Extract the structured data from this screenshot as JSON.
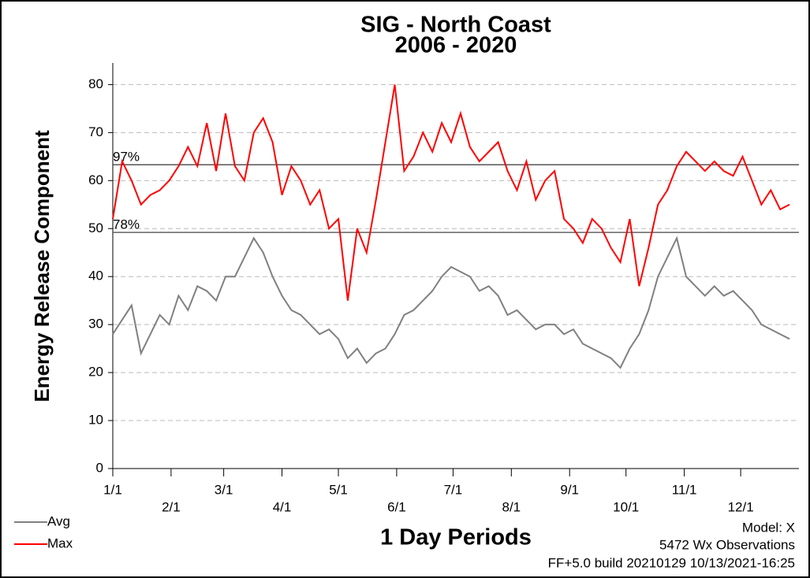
{
  "chart_data": {
    "type": "line",
    "title": "SIG - North Coast",
    "subtitle": "2006 - 2020",
    "y_label": "Energy Release Component",
    "x_label": "1 Day Periods",
    "notes": [
      "Model: X",
      "5472 Wx Observations",
      "FF+5.0 build 20210129 10/13/2021-16:25"
    ],
    "x": [
      1,
      6,
      11,
      16,
      21,
      26,
      31,
      36,
      41,
      46,
      51,
      56,
      61,
      66,
      71,
      76,
      81,
      86,
      91,
      96,
      101,
      106,
      111,
      116,
      121,
      126,
      131,
      136,
      141,
      146,
      151,
      156,
      161,
      166,
      171,
      176,
      181,
      186,
      191,
      196,
      201,
      206,
      211,
      216,
      221,
      226,
      231,
      236,
      241,
      246,
      251,
      256,
      261,
      266,
      271,
      276,
      281,
      286,
      291,
      296,
      301,
      306,
      311,
      316,
      321,
      326,
      331,
      336,
      341,
      346,
      351,
      356,
      361
    ],
    "series": [
      {
        "name": "Avg",
        "color": "#808080",
        "values": [
          28,
          31,
          34,
          24,
          28,
          32,
          30,
          36,
          33,
          38,
          37,
          35,
          40,
          40,
          44,
          48,
          45,
          40,
          36,
          33,
          32,
          30,
          28,
          29,
          27,
          23,
          25,
          22,
          24,
          25,
          28,
          32,
          33,
          35,
          37,
          40,
          42,
          41,
          40,
          37,
          38,
          36,
          32,
          33,
          31,
          29,
          30,
          30,
          28,
          29,
          26,
          25,
          24,
          23,
          21,
          25,
          28,
          33,
          40,
          44,
          48,
          40,
          38,
          36,
          38,
          36,
          37,
          35,
          33,
          30,
          29,
          28,
          27
        ]
      },
      {
        "name": "Max",
        "color": "#ff0000",
        "values": [
          52,
          64,
          60,
          55,
          57,
          58,
          60,
          63,
          67,
          63,
          72,
          62,
          74,
          63,
          60,
          70,
          73,
          68,
          57,
          63,
          60,
          55,
          58,
          50,
          52,
          35,
          50,
          45,
          56,
          68,
          80,
          62,
          65,
          70,
          66,
          72,
          68,
          74,
          67,
          64,
          66,
          68,
          62,
          58,
          64,
          56,
          60,
          62,
          52,
          50,
          47,
          52,
          50,
          46,
          43,
          52,
          38,
          46,
          55,
          58,
          63,
          66,
          64,
          62,
          64,
          62,
          61,
          65,
          60,
          55,
          58,
          54,
          55
        ]
      }
    ],
    "reference_lines": [
      {
        "value": 63.3,
        "label": "97%"
      },
      {
        "value": 49.2,
        "label": "78%"
      }
    ],
    "xlim": [
      1,
      366
    ],
    "xticks": [
      {
        "value": 1,
        "label": "1/1"
      },
      {
        "value": 32,
        "label": "2/1"
      },
      {
        "value": 60,
        "label": "3/1"
      },
      {
        "value": 91,
        "label": "4/1"
      },
      {
        "value": 121,
        "label": "5/1"
      },
      {
        "value": 152,
        "label": "6/1"
      },
      {
        "value": 182,
        "label": "7/1"
      },
      {
        "value": 213,
        "label": "8/1"
      },
      {
        "value": 244,
        "label": "9/1"
      },
      {
        "value": 274,
        "label": "10/1"
      },
      {
        "value": 305,
        "label": "11/1"
      },
      {
        "value": 335,
        "label": "12/1"
      }
    ],
    "ylim": [
      0,
      84.5
    ],
    "yticks": [
      0,
      10,
      20,
      30,
      40,
      50,
      60,
      70,
      80
    ],
    "grid": true
  }
}
